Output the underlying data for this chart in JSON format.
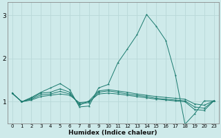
{
  "xlabel": "Humidex (Indice chaleur)",
  "background_color": "#ceeaea",
  "line_color": "#1a7a6e",
  "grid_color": "#b8d8d8",
  "xlim": [
    -0.5,
    23.5
  ],
  "ylim": [
    0.5,
    3.3
  ],
  "yticks": [
    1,
    2,
    3
  ],
  "xtick_labels": [
    "0",
    "1",
    "2",
    "3",
    "4",
    "5",
    "6",
    "7",
    "8",
    "9",
    "10",
    "11",
    "12",
    "13",
    "14",
    "15",
    "16",
    "17",
    "18",
    "19",
    "20",
    "23"
  ],
  "xtick_pos": [
    0,
    1,
    2,
    3,
    4,
    5,
    6,
    7,
    8,
    9,
    10,
    11,
    12,
    13,
    14,
    15,
    16,
    17,
    18,
    19,
    20,
    21
  ],
  "xlim2": [
    -0.5,
    21.5
  ],
  "series1": {
    "x": [
      0,
      1,
      2,
      3,
      4,
      5,
      6,
      7,
      8,
      9,
      10,
      11,
      12,
      13,
      14,
      15,
      16,
      17,
      18,
      19,
      20,
      21
    ],
    "y": [
      1.2,
      1.0,
      1.1,
      1.22,
      1.32,
      1.42,
      1.28,
      0.88,
      0.9,
      1.32,
      1.4,
      1.9,
      2.22,
      2.55,
      3.02,
      2.75,
      2.42,
      1.62,
      0.48,
      0.72,
      1.02,
      1.02
    ]
  },
  "series2": {
    "x": [
      0,
      1,
      2,
      3,
      4,
      5,
      6,
      7,
      8,
      9,
      10,
      11,
      12,
      13,
      14,
      15,
      16,
      17,
      18,
      19,
      20,
      21
    ],
    "y": [
      1.2,
      1.0,
      1.08,
      1.2,
      1.22,
      1.3,
      1.22,
      0.92,
      1.02,
      1.25,
      1.28,
      1.25,
      1.22,
      1.18,
      1.15,
      1.12,
      1.1,
      1.08,
      1.06,
      0.95,
      0.92,
      1.02
    ]
  },
  "series3": {
    "x": [
      0,
      1,
      2,
      3,
      4,
      5,
      6,
      7,
      8,
      9,
      10,
      11,
      12,
      13,
      14,
      15,
      16,
      17,
      18,
      19,
      20,
      21
    ],
    "y": [
      1.2,
      1.0,
      1.06,
      1.16,
      1.18,
      1.24,
      1.18,
      0.95,
      0.98,
      1.22,
      1.25,
      1.22,
      1.18,
      1.15,
      1.12,
      1.08,
      1.06,
      1.04,
      1.02,
      0.88,
      0.85,
      1.02
    ]
  },
  "series4": {
    "x": [
      0,
      1,
      2,
      3,
      4,
      5,
      6,
      7,
      8,
      9,
      10,
      11,
      12,
      13,
      14,
      15,
      16,
      17,
      18,
      19,
      20,
      21
    ],
    "y": [
      1.2,
      1.0,
      1.04,
      1.12,
      1.15,
      1.18,
      1.15,
      0.98,
      1.0,
      1.18,
      1.2,
      1.18,
      1.15,
      1.12,
      1.09,
      1.06,
      1.04,
      1.02,
      1.0,
      0.82,
      0.8,
      1.02
    ]
  }
}
